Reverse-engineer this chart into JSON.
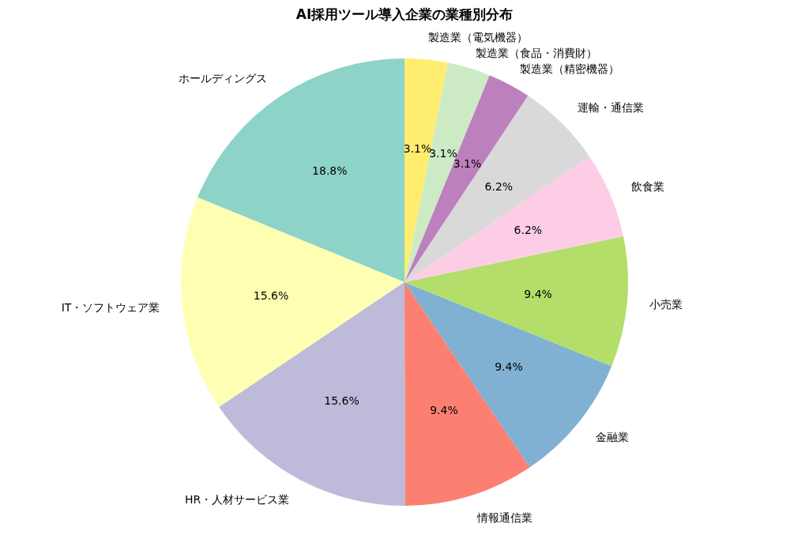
{
  "chart_data": {
    "type": "pie",
    "title": "AI採用ツール導入企業の業種別分布",
    "categories": [
      "ホールディングス",
      "IT・ソフトウェア業",
      "HR・人材サービス業",
      "情報通信業",
      "金融業",
      "小売業",
      "飲食業",
      "運輸・通信業",
      "製造業（精密機器）",
      "製造業（食品・消費財）",
      "製造業（電気機器）"
    ],
    "values": [
      18.8,
      15.6,
      15.6,
      9.4,
      9.4,
      9.4,
      6.2,
      6.2,
      3.1,
      3.1,
      3.1
    ],
    "colors": [
      "#8dd3c7",
      "#ffffb3",
      "#bebada",
      "#fb8072",
      "#80b1d3",
      "#b3de69",
      "#fccde5",
      "#d9d9d9",
      "#bc80bd",
      "#ccebc5",
      "#ffed6f"
    ],
    "value_labels": [
      "18.8%",
      "15.6%",
      "15.6%",
      "9.4%",
      "9.4%",
      "9.4%",
      "6.2%",
      "6.2%",
      "3.1%",
      "3.1%",
      "3.1%"
    ]
  }
}
